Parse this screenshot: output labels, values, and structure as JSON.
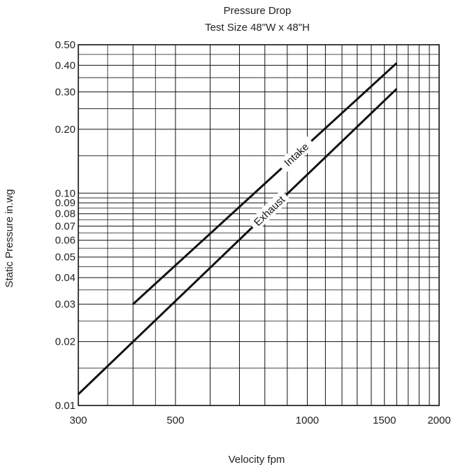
{
  "chart_data": {
    "type": "line",
    "title": "Pressure Drop",
    "subtitle": "Test Size 48\"W x 48\"H",
    "xlabel": "Velocity fpm",
    "ylabel": "Static Pressure in.wg",
    "x_scale": "log",
    "y_scale": "log",
    "xlim": [
      300,
      2000
    ],
    "ylim": [
      0.01,
      0.5
    ],
    "grid": true,
    "x_ticks": [
      300,
      500,
      1000,
      1500,
      2000
    ],
    "x_tick_labels": [
      "300",
      "500",
      "1000",
      "1500",
      "2000"
    ],
    "y_ticks": [
      0.01,
      0.02,
      0.03,
      0.04,
      0.05,
      0.06,
      0.07,
      0.08,
      0.09,
      0.1,
      0.2,
      0.3,
      0.4,
      0.5
    ],
    "y_tick_labels": [
      "0.01",
      "0.02",
      "0.03",
      "0.04",
      "0.05",
      "0.06",
      "0.07",
      "0.08",
      "0.09",
      "0.10",
      "0.20",
      "0.30",
      "0.40",
      "0.50"
    ],
    "series": [
      {
        "name": "Intake",
        "x": [
          400,
          1600
        ],
        "y": [
          0.03,
          0.41
        ]
      },
      {
        "name": "Exhaust",
        "x": [
          300,
          1600
        ],
        "y": [
          0.0113,
          0.31
        ]
      }
    ],
    "colors": {
      "line": "#111111",
      "grid": "#111111",
      "frame": "#111111"
    }
  }
}
